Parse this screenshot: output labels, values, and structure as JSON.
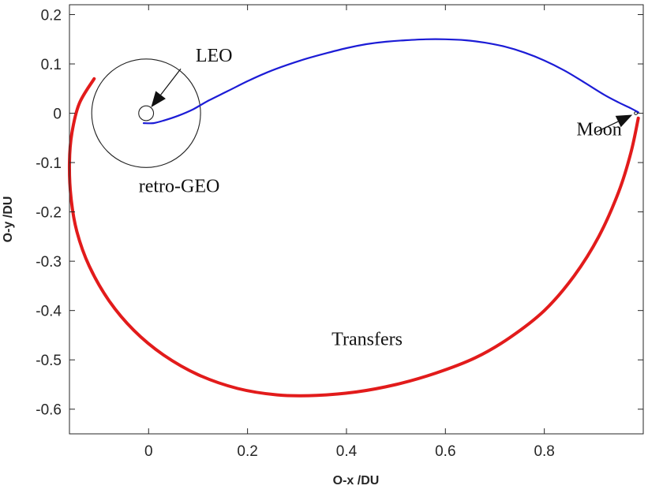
{
  "chart_data": {
    "type": "line",
    "title": "",
    "xlabel": "O-x /DU",
    "ylabel": "O-y /DU",
    "xlim": [
      -0.16,
      1.0
    ],
    "ylim": [
      -0.65,
      0.22
    ],
    "xticks": [
      0,
      0.2,
      0.4,
      0.6,
      0.8
    ],
    "xtick_labels": [
      "0",
      "0.2",
      "0.4",
      "0.6",
      "0.8"
    ],
    "yticks": [
      0.2,
      0.1,
      0,
      -0.1,
      -0.2,
      -0.3,
      -0.4,
      -0.5,
      -0.6
    ],
    "ytick_labels": [
      "0.2",
      "0.1",
      "0",
      "-0.1",
      "-0.2",
      "-0.3",
      "-0.4",
      "-0.5",
      "-0.6"
    ],
    "grid": false,
    "series": [
      {
        "color": "#1c1cd6",
        "x": [
          -0.01,
          0.01,
          0.03,
          0.06,
          0.09,
          0.12,
          0.16,
          0.2,
          0.24,
          0.28,
          0.32,
          0.36,
          0.4,
          0.44,
          0.48,
          0.52,
          0.56,
          0.6,
          0.64,
          0.68,
          0.72,
          0.76,
          0.8,
          0.84,
          0.88,
          0.92,
          0.95,
          0.975,
          0.99
        ],
        "y": [
          -0.02,
          -0.02,
          -0.015,
          -0.005,
          0.008,
          0.025,
          0.045,
          0.065,
          0.083,
          0.098,
          0.111,
          0.122,
          0.132,
          0.14,
          0.145,
          0.148,
          0.15,
          0.15,
          0.148,
          0.143,
          0.135,
          0.123,
          0.107,
          0.087,
          0.063,
          0.038,
          0.022,
          0.01,
          0.002
        ]
      },
      {
        "color": "#e21b1b",
        "x": [
          -0.11,
          -0.14,
          -0.155,
          -0.16,
          -0.157,
          -0.145,
          -0.12,
          -0.08,
          -0.03,
          0.03,
          0.1,
          0.18,
          0.26,
          0.34,
          0.42,
          0.5,
          0.58,
          0.66,
          0.73,
          0.8,
          0.86,
          0.91,
          0.95,
          0.975,
          0.99
        ],
        "y": [
          0.07,
          0.02,
          -0.04,
          -0.1,
          -0.17,
          -0.24,
          -0.31,
          -0.38,
          -0.44,
          -0.49,
          -0.53,
          -0.558,
          -0.571,
          -0.572,
          -0.565,
          -0.55,
          -0.527,
          -0.496,
          -0.455,
          -0.4,
          -0.33,
          -0.25,
          -0.16,
          -0.08,
          -0.01
        ]
      }
    ],
    "shapes": [
      {
        "kind": "circle",
        "cx": -0.005,
        "cy": 0.0,
        "r": 0.015
      },
      {
        "kind": "circle",
        "cx": -0.005,
        "cy": 0.0,
        "r": 0.11
      },
      {
        "kind": "circle",
        "cx": 0.985,
        "cy": 0.0,
        "r": 0.003
      }
    ],
    "annotations": [
      {
        "text": "LEO",
        "x": 0.095,
        "y": 0.105,
        "arrow_from": [
          0.065,
          0.09
        ],
        "arrow_to": [
          0.005,
          0.012
        ]
      },
      {
        "text": "retro-GEO",
        "x": -0.02,
        "y": -0.16
      },
      {
        "text": "Moon",
        "x": 0.865,
        "y": -0.045,
        "arrow_from": [
          0.905,
          -0.038
        ],
        "arrow_to": [
          0.978,
          -0.003
        ]
      },
      {
        "text": "Transfers",
        "x": 0.37,
        "y": -0.47
      }
    ]
  }
}
